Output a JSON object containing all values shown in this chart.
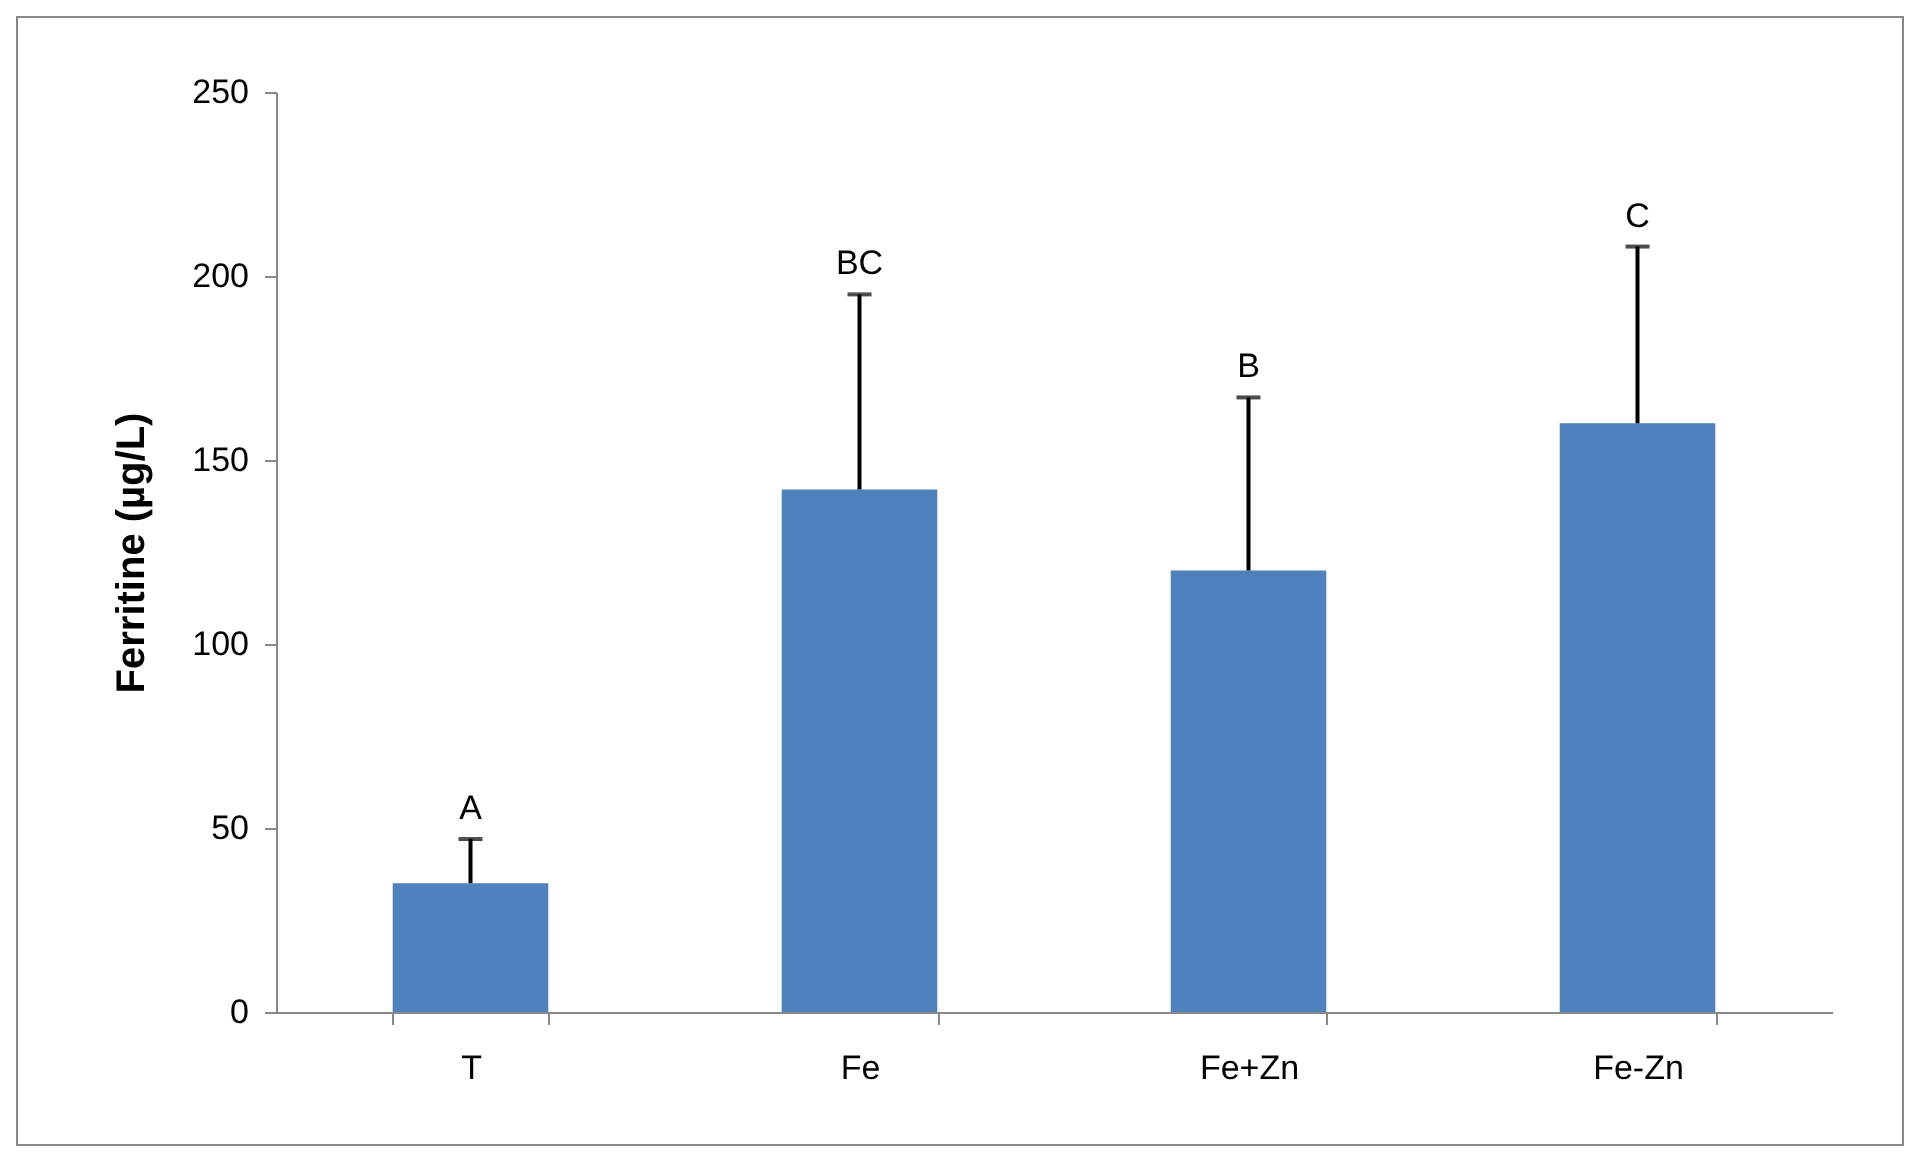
{
  "chart_data": {
    "type": "bar",
    "ylabel": "Ferritine (µg/L)",
    "categories": [
      "T",
      "Fe",
      "Fe+Zn",
      "Fe-Zn"
    ],
    "values": [
      35,
      142,
      120,
      160
    ],
    "color": "#4f81bd",
    "errors": [
      [
        35,
        47
      ],
      [
        142,
        195
      ],
      [
        120,
        167
      ],
      [
        160,
        208
      ]
    ],
    "annotations": [
      {
        "text": "A",
        "x": "T",
        "y": 47
      },
      {
        "text": "BC",
        "x": "Fe",
        "y": 195
      },
      {
        "text": "B",
        "x": "Fe+Zn",
        "y": 167
      },
      {
        "text": "C",
        "x": "Fe-Zn",
        "y": 208
      }
    ],
    "ylim": [
      0,
      250
    ],
    "yticks": [
      0,
      50,
      100,
      150,
      200,
      250
    ],
    "grid": false
  }
}
